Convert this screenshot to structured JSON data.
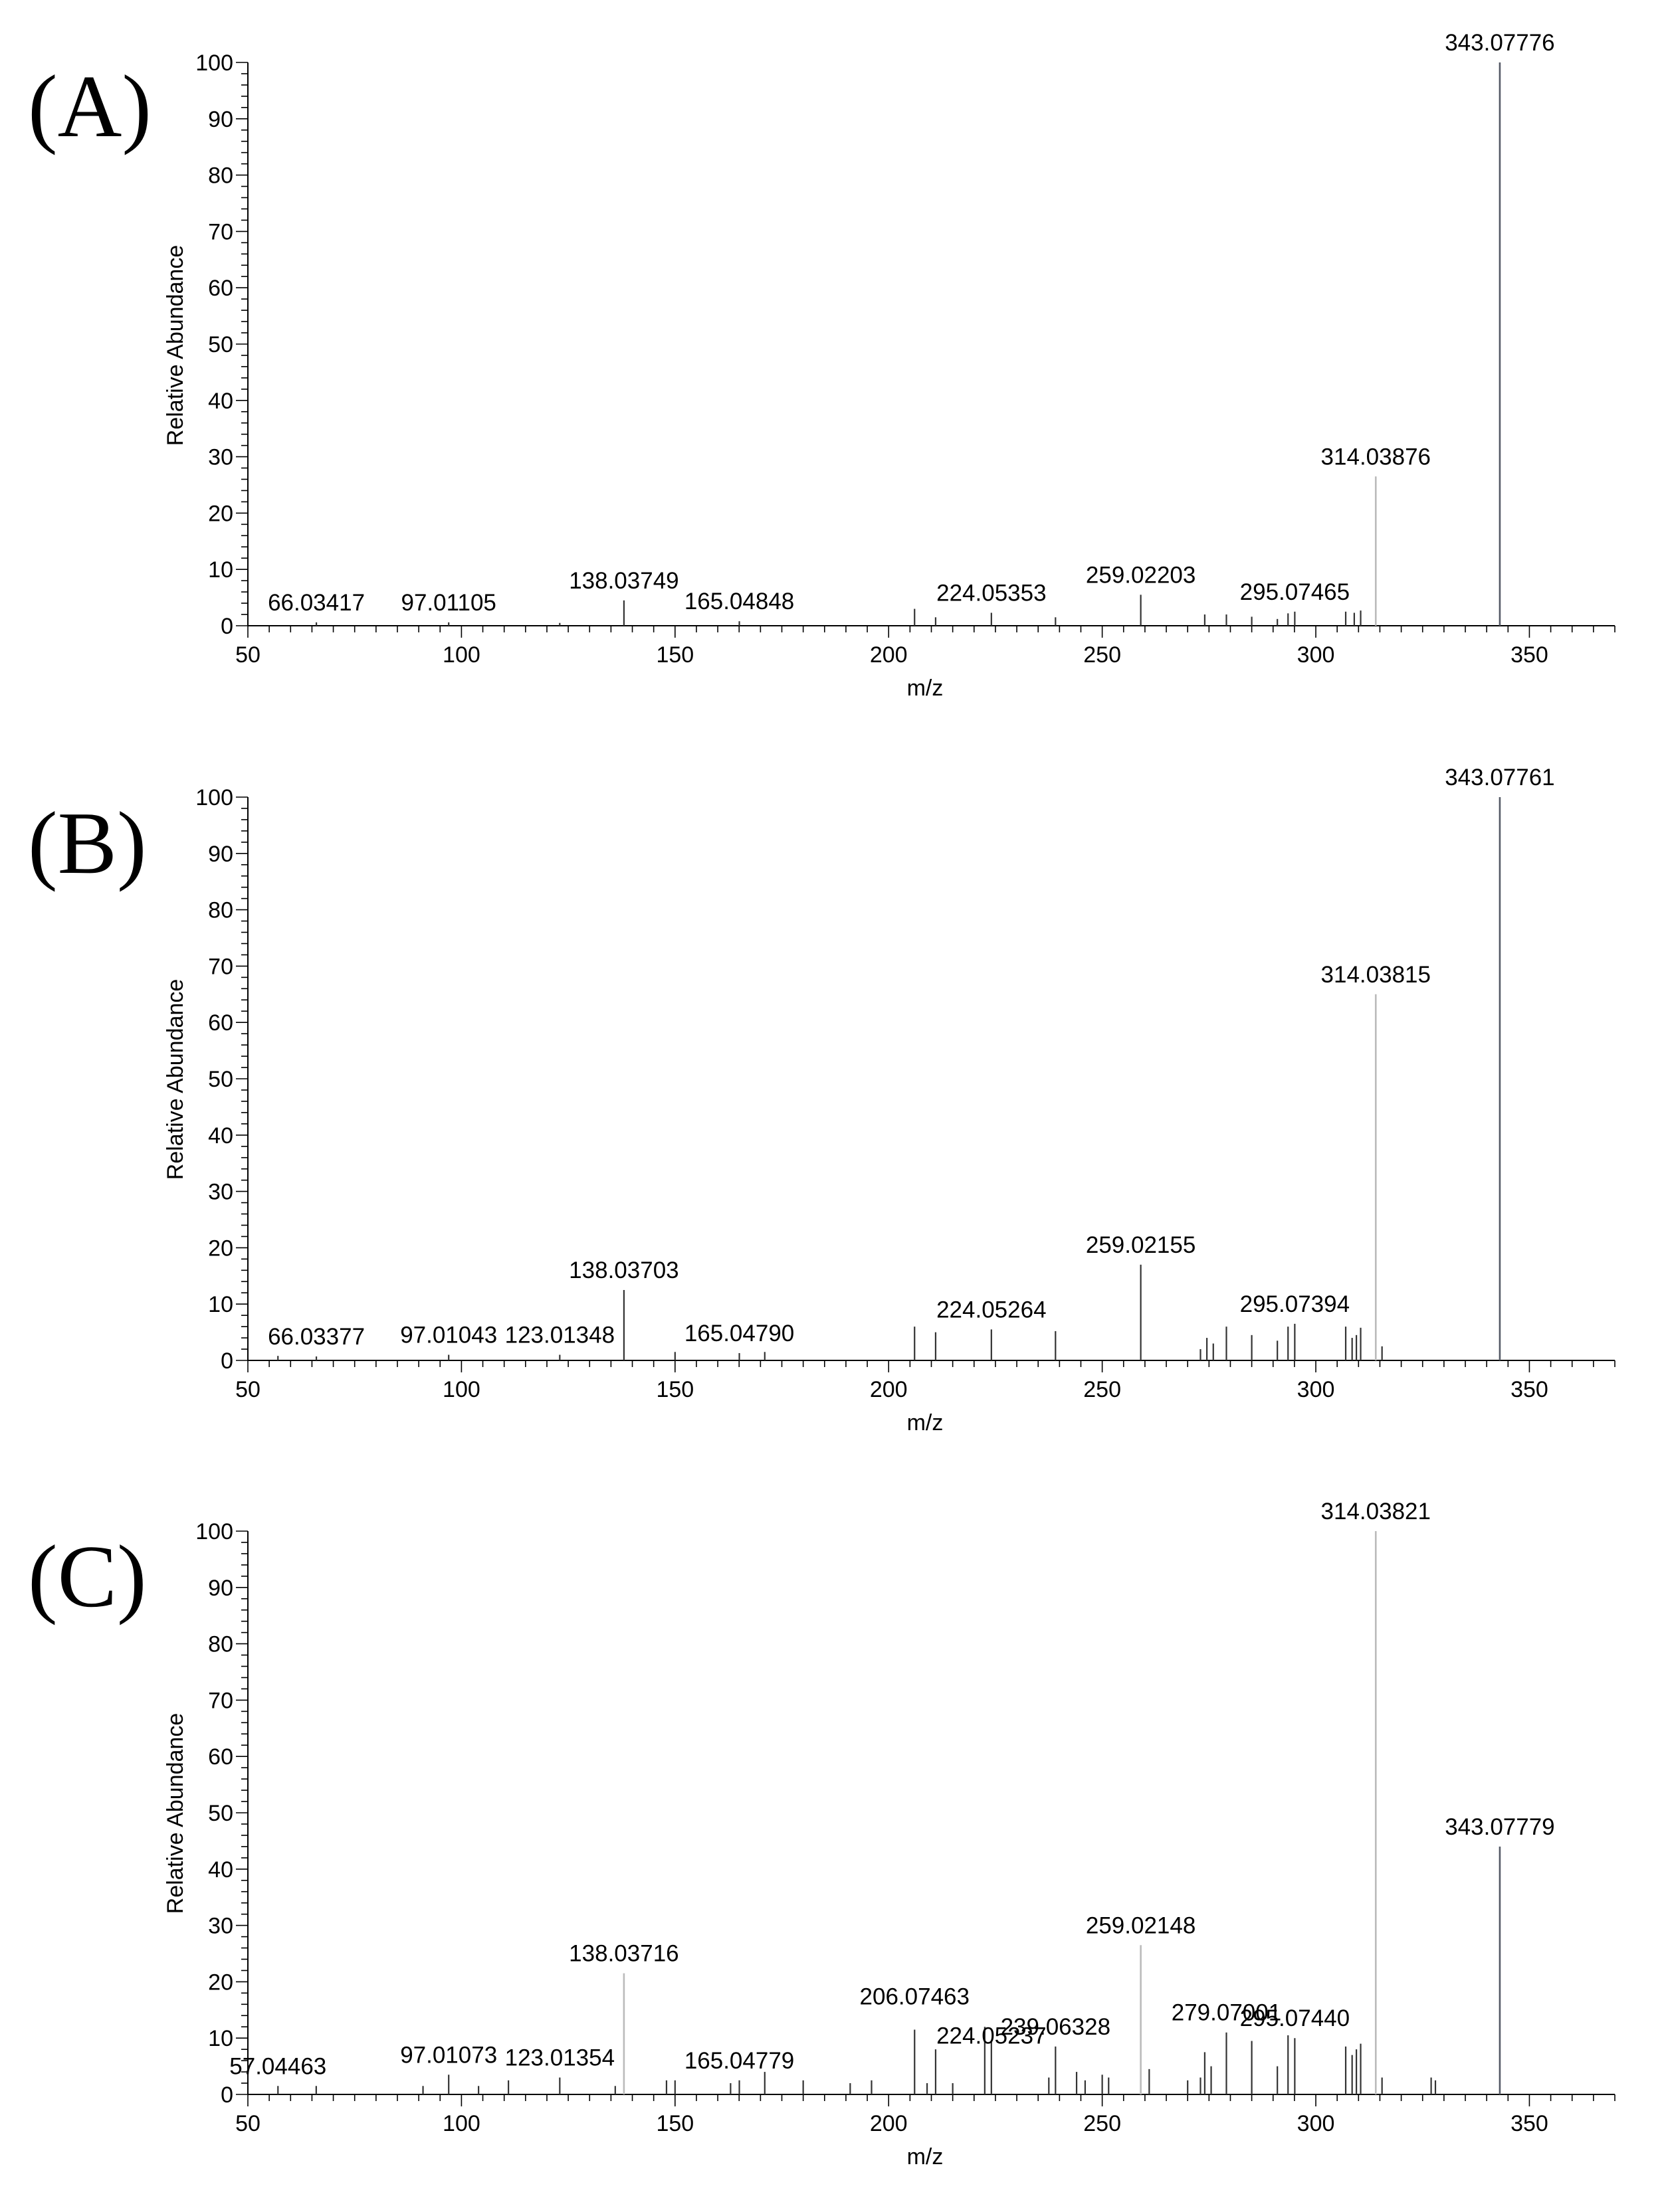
{
  "chart_data": [
    {
      "type": "bar",
      "panel_label": "(A)",
      "xlabel": "m/z",
      "ylabel": "Relative Abundance",
      "xlim": [
        50,
        370
      ],
      "ylim": [
        0,
        100
      ],
      "x_ticks": [
        "50",
        "100",
        "150",
        "200",
        "250",
        "300",
        "350"
      ],
      "y_ticks": [
        "0",
        "10",
        "20",
        "30",
        "40",
        "50",
        "60",
        "70",
        "80",
        "90",
        "100"
      ],
      "peaks": [
        {
          "mz": 66.03417,
          "abundance": 0.6,
          "label": "66.03417"
        },
        {
          "mz": 97.01105,
          "abundance": 0.6,
          "label": "97.01105"
        },
        {
          "mz": 123.01,
          "abundance": 0.5
        },
        {
          "mz": 138.03749,
          "abundance": 4.5,
          "label": "138.03749"
        },
        {
          "mz": 165.04848,
          "abundance": 0.8,
          "label": "165.04848"
        },
        {
          "mz": 206.07,
          "abundance": 3.0
        },
        {
          "mz": 211.0,
          "abundance": 1.5
        },
        {
          "mz": 224.05353,
          "abundance": 2.3,
          "label": "224.05353"
        },
        {
          "mz": 239.06,
          "abundance": 1.5
        },
        {
          "mz": 259.02203,
          "abundance": 5.5,
          "label": "259.02203"
        },
        {
          "mz": 274.0,
          "abundance": 2.0
        },
        {
          "mz": 279.07,
          "abundance": 2.0
        },
        {
          "mz": 285.0,
          "abundance": 1.6
        },
        {
          "mz": 291.0,
          "abundance": 1.2
        },
        {
          "mz": 293.5,
          "abundance": 2.2
        },
        {
          "mz": 295.07465,
          "abundance": 2.5,
          "label": "295.07465"
        },
        {
          "mz": 307.0,
          "abundance": 2.5
        },
        {
          "mz": 309.0,
          "abundance": 2.3
        },
        {
          "mz": 310.5,
          "abundance": 2.7
        },
        {
          "mz": 314.03876,
          "abundance": 26.5,
          "label": "314.03876"
        },
        {
          "mz": 343.07776,
          "abundance": 100,
          "label": "343.07776"
        }
      ]
    },
    {
      "type": "bar",
      "panel_label": "(B)",
      "xlabel": "m/z",
      "ylabel": "Relative Abundance",
      "xlim": [
        50,
        370
      ],
      "ylim": [
        0,
        100
      ],
      "x_ticks": [
        "50",
        "100",
        "150",
        "200",
        "250",
        "300",
        "350"
      ],
      "y_ticks": [
        "0",
        "10",
        "20",
        "30",
        "40",
        "50",
        "60",
        "70",
        "80",
        "90",
        "100"
      ],
      "peaks": [
        {
          "mz": 57.04,
          "abundance": 0.8
        },
        {
          "mz": 66.03377,
          "abundance": 0.7,
          "label": "66.03377"
        },
        {
          "mz": 97.01043,
          "abundance": 1.0,
          "label": "97.01043"
        },
        {
          "mz": 123.01348,
          "abundance": 1.0,
          "label": "123.01348"
        },
        {
          "mz": 138.03703,
          "abundance": 12.5,
          "label": "138.03703"
        },
        {
          "mz": 150.0,
          "abundance": 1.5
        },
        {
          "mz": 165.0479,
          "abundance": 1.3,
          "label": "165.04790"
        },
        {
          "mz": 171.0,
          "abundance": 1.5
        },
        {
          "mz": 206.07,
          "abundance": 6.0
        },
        {
          "mz": 211.0,
          "abundance": 5.0
        },
        {
          "mz": 224.05264,
          "abundance": 5.5,
          "label": "224.05264"
        },
        {
          "mz": 239.06,
          "abundance": 5.2
        },
        {
          "mz": 259.02155,
          "abundance": 17.0,
          "label": "259.02155"
        },
        {
          "mz": 273.0,
          "abundance": 2.0
        },
        {
          "mz": 274.5,
          "abundance": 4.0
        },
        {
          "mz": 276.0,
          "abundance": 3.0
        },
        {
          "mz": 279.07,
          "abundance": 6.0
        },
        {
          "mz": 285.0,
          "abundance": 4.5
        },
        {
          "mz": 291.0,
          "abundance": 3.5
        },
        {
          "mz": 293.5,
          "abundance": 6.0
        },
        {
          "mz": 295.07394,
          "abundance": 6.5,
          "label": "295.07394"
        },
        {
          "mz": 307.0,
          "abundance": 6.0
        },
        {
          "mz": 308.5,
          "abundance": 4.0
        },
        {
          "mz": 309.5,
          "abundance": 4.5
        },
        {
          "mz": 310.5,
          "abundance": 5.8
        },
        {
          "mz": 314.03815,
          "abundance": 65.0,
          "label": "314.03815"
        },
        {
          "mz": 315.5,
          "abundance": 2.5
        },
        {
          "mz": 343.07761,
          "abundance": 100,
          "label": "343.07761"
        }
      ]
    },
    {
      "type": "bar",
      "panel_label": "(C)",
      "xlabel": "m/z",
      "ylabel": "Relative Abundance",
      "xlim": [
        50,
        370
      ],
      "ylim": [
        0,
        100
      ],
      "x_ticks": [
        "50",
        "100",
        "150",
        "200",
        "250",
        "300",
        "350"
      ],
      "y_ticks": [
        "0",
        "10",
        "20",
        "30",
        "40",
        "50",
        "60",
        "70",
        "80",
        "90",
        "100"
      ],
      "peaks": [
        {
          "mz": 57.04463,
          "abundance": 1.5,
          "label": "57.04463"
        },
        {
          "mz": 66.0,
          "abundance": 1.5
        },
        {
          "mz": 91.0,
          "abundance": 1.5
        },
        {
          "mz": 97.01073,
          "abundance": 3.5,
          "label": "97.01073"
        },
        {
          "mz": 104.0,
          "abundance": 1.5
        },
        {
          "mz": 111.0,
          "abundance": 2.5
        },
        {
          "mz": 123.01354,
          "abundance": 3.0,
          "label": "123.01354"
        },
        {
          "mz": 136.0,
          "abundance": 1.5
        },
        {
          "mz": 138.03716,
          "abundance": 21.5,
          "label": "138.03716"
        },
        {
          "mz": 148.0,
          "abundance": 2.5
        },
        {
          "mz": 150.0,
          "abundance": 2.5
        },
        {
          "mz": 163.0,
          "abundance": 2.0
        },
        {
          "mz": 165.04779,
          "abundance": 2.5,
          "label": "165.04779"
        },
        {
          "mz": 171.0,
          "abundance": 4.0
        },
        {
          "mz": 180.0,
          "abundance": 2.5
        },
        {
          "mz": 191.0,
          "abundance": 2.0
        },
        {
          "mz": 196.0,
          "abundance": 2.5
        },
        {
          "mz": 206.07463,
          "abundance": 11.5,
          "label": "206.07463"
        },
        {
          "mz": 209.0,
          "abundance": 2.0
        },
        {
          "mz": 211.0,
          "abundance": 8.0
        },
        {
          "mz": 215.0,
          "abundance": 2.0
        },
        {
          "mz": 222.5,
          "abundance": 12.0
        },
        {
          "mz": 224.05237,
          "abundance": 9.5,
          "label": "224.05237"
        },
        {
          "mz": 237.5,
          "abundance": 3.0
        },
        {
          "mz": 239.06328,
          "abundance": 8.5,
          "label": "239.06328"
        },
        {
          "mz": 244.0,
          "abundance": 4.0
        },
        {
          "mz": 246.0,
          "abundance": 2.5
        },
        {
          "mz": 250.0,
          "abundance": 3.5
        },
        {
          "mz": 251.5,
          "abundance": 3.0
        },
        {
          "mz": 259.02148,
          "abundance": 26.5,
          "label": "259.02148"
        },
        {
          "mz": 261.0,
          "abundance": 4.5
        },
        {
          "mz": 270.0,
          "abundance": 2.5
        },
        {
          "mz": 273.0,
          "abundance": 3.0
        },
        {
          "mz": 274.0,
          "abundance": 7.5
        },
        {
          "mz": 275.5,
          "abundance": 5.0
        },
        {
          "mz": 279.07001,
          "abundance": 11.0,
          "label": "279.07001"
        },
        {
          "mz": 285.0,
          "abundance": 9.5
        },
        {
          "mz": 291.0,
          "abundance": 5.0
        },
        {
          "mz": 293.5,
          "abundance": 10.5
        },
        {
          "mz": 295.0744,
          "abundance": 10.0,
          "label": "295.07440"
        },
        {
          "mz": 307.0,
          "abundance": 8.5
        },
        {
          "mz": 308.5,
          "abundance": 7.0
        },
        {
          "mz": 309.5,
          "abundance": 8.0
        },
        {
          "mz": 310.5,
          "abundance": 9.0
        },
        {
          "mz": 314.03821,
          "abundance": 100,
          "label": "314.03821"
        },
        {
          "mz": 315.5,
          "abundance": 3.0
        },
        {
          "mz": 327.0,
          "abundance": 3.0
        },
        {
          "mz": 328.0,
          "abundance": 2.5
        },
        {
          "mz": 343.07779,
          "abundance": 44.0,
          "label": "343.07779"
        }
      ]
    }
  ]
}
